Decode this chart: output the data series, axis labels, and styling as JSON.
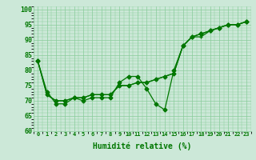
{
  "title": "",
  "xlabel": "Humidité relative (%)",
  "ylabel": "",
  "bg_color": "#cce8d8",
  "grid_color": "#88cc99",
  "line_color": "#007700",
  "xlim": [
    -0.5,
    23.5
  ],
  "ylim": [
    60,
    101
  ],
  "yticks": [
    60,
    65,
    70,
    75,
    80,
    85,
    90,
    95,
    100
  ],
  "xticks": [
    0,
    1,
    2,
    3,
    4,
    5,
    6,
    7,
    8,
    9,
    10,
    11,
    12,
    13,
    14,
    15,
    16,
    17,
    18,
    19,
    20,
    21,
    22,
    23
  ],
  "series_zigzag": [
    83,
    73,
    69,
    69,
    71,
    70,
    71,
    71,
    71,
    76,
    78,
    78,
    74,
    69,
    67,
    80,
    88,
    91,
    92,
    93,
    94,
    95,
    95,
    96
  ],
  "series_smooth1": [
    83,
    72,
    70,
    70,
    71,
    71,
    72,
    72,
    72,
    75,
    75,
    76,
    76,
    77,
    78,
    79,
    88,
    91,
    92,
    93,
    94,
    95,
    95,
    96
  ],
  "series_smooth2": [
    83,
    72,
    70,
    70,
    71,
    71,
    72,
    72,
    72,
    75,
    75,
    76,
    76,
    77,
    78,
    79,
    88,
    91,
    91,
    93,
    94,
    95,
    95,
    96
  ]
}
